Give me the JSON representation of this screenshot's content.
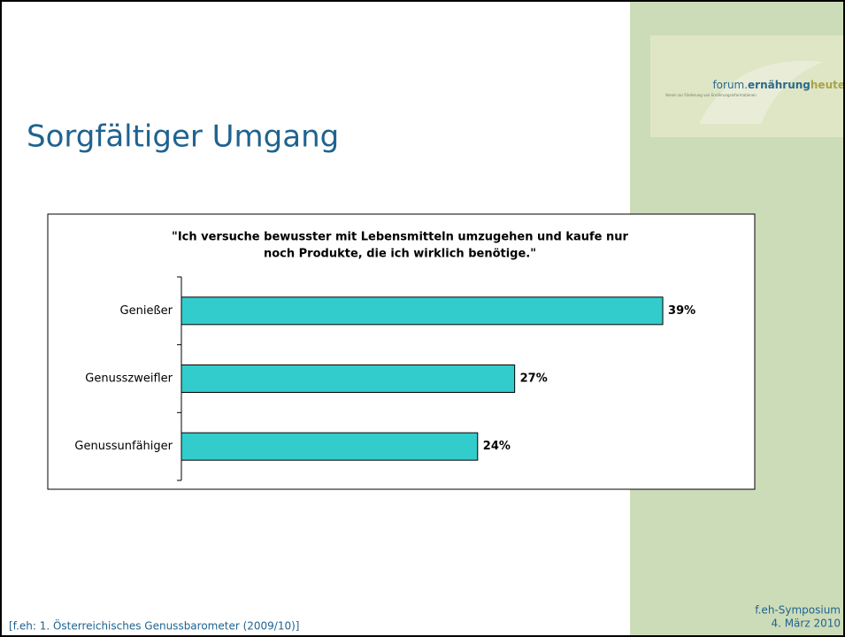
{
  "header": {
    "title": "Sorgfältiger Umgang"
  },
  "logo": {
    "brand_1": "forum.",
    "brand_2": "ernährung",
    "brand_3": "heute",
    "tagline": "Verein zur Förderung von Ernährungsinformationen"
  },
  "chart_data": {
    "type": "bar",
    "orientation": "horizontal",
    "title_lines": [
      "\"Ich versuche bewusster mit Lebensmitteln umzugehen und kaufe nur",
      "noch Produkte, die ich wirklich benötige.\""
    ],
    "categories": [
      "Genießer",
      "Genusszweifler",
      "Genussunfähiger"
    ],
    "values": [
      39,
      27,
      24
    ],
    "value_labels": [
      "39%",
      "27%",
      "24%"
    ],
    "color": "#33cccc"
  },
  "footer": {
    "source": "[f.eh: 1. Österreichisches Genussbarometer (2009/10)]",
    "event": "f.eh-Symposium",
    "date": "4. März 2010"
  }
}
